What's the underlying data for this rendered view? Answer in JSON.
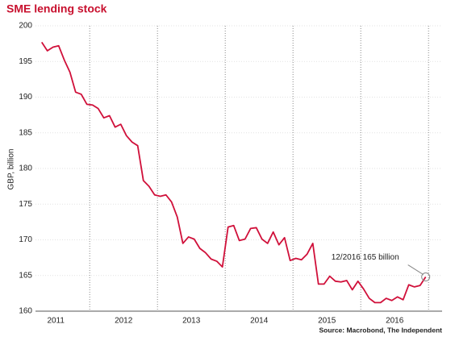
{
  "chart_data": {
    "type": "line",
    "title": "SME lending stock",
    "y_label": "GBP, billion",
    "source": "Source: Macrobond, The Independent",
    "annotation": "12/2016 165 billion",
    "xlim": [
      2011.2,
      2017.2
    ],
    "ylim": [
      160,
      200
    ],
    "yticks": [
      160,
      165,
      170,
      175,
      180,
      185,
      190,
      195,
      200
    ],
    "xticks": [
      {
        "value": 2011.5,
        "label": "2011"
      },
      {
        "value": 2012.5,
        "label": "2012"
      },
      {
        "value": 2013.5,
        "label": "2013"
      },
      {
        "value": 2014.5,
        "label": "2014"
      },
      {
        "value": 2015.5,
        "label": "2015"
      },
      {
        "value": 2016.5,
        "label": "2016"
      }
    ],
    "x_gridlines": [
      2012,
      2013,
      2014,
      2015,
      2016,
      2017
    ],
    "grid": true,
    "x": [
      2011.292,
      2011.375,
      2011.458,
      2011.542,
      2011.625,
      2011.708,
      2011.792,
      2011.875,
      2011.958,
      2012.042,
      2012.125,
      2012.208,
      2012.292,
      2012.375,
      2012.458,
      2012.542,
      2012.625,
      2012.708,
      2012.792,
      2012.875,
      2012.958,
      2013.042,
      2013.125,
      2013.208,
      2013.292,
      2013.375,
      2013.458,
      2013.542,
      2013.625,
      2013.708,
      2013.792,
      2013.875,
      2013.958,
      2014.042,
      2014.125,
      2014.208,
      2014.292,
      2014.375,
      2014.458,
      2014.542,
      2014.625,
      2014.708,
      2014.792,
      2014.875,
      2014.958,
      2015.042,
      2015.125,
      2015.208,
      2015.292,
      2015.375,
      2015.458,
      2015.542,
      2015.625,
      2015.708,
      2015.792,
      2015.875,
      2015.958,
      2016.042,
      2016.125,
      2016.208,
      2016.292,
      2016.375,
      2016.458,
      2016.542,
      2016.625,
      2016.708,
      2016.792,
      2016.875,
      2016.958
    ],
    "series": [
      {
        "name": "SME lending stock",
        "color": "#d0103a",
        "values": [
          197.7,
          196.5,
          197.0,
          197.2,
          195.2,
          193.5,
          190.7,
          190.4,
          189.0,
          188.9,
          188.4,
          187.1,
          187.4,
          185.8,
          186.2,
          184.6,
          183.7,
          183.2,
          178.3,
          177.5,
          176.3,
          176.1,
          176.3,
          175.3,
          173.2,
          169.5,
          170.4,
          170.1,
          168.8,
          168.2,
          167.3,
          167.0,
          166.2,
          171.8,
          172.0,
          169.9,
          170.1,
          171.6,
          171.7,
          170.1,
          169.5,
          171.1,
          169.3,
          170.3,
          167.1,
          167.4,
          167.2,
          168.0,
          169.5,
          163.8,
          163.8,
          164.9,
          164.2,
          164.1,
          164.3,
          163.0,
          164.2,
          163.1,
          161.8,
          161.2,
          161.2,
          161.8,
          161.5,
          162.0,
          161.6,
          163.7,
          163.4,
          163.6,
          164.8
        ]
      }
    ]
  }
}
